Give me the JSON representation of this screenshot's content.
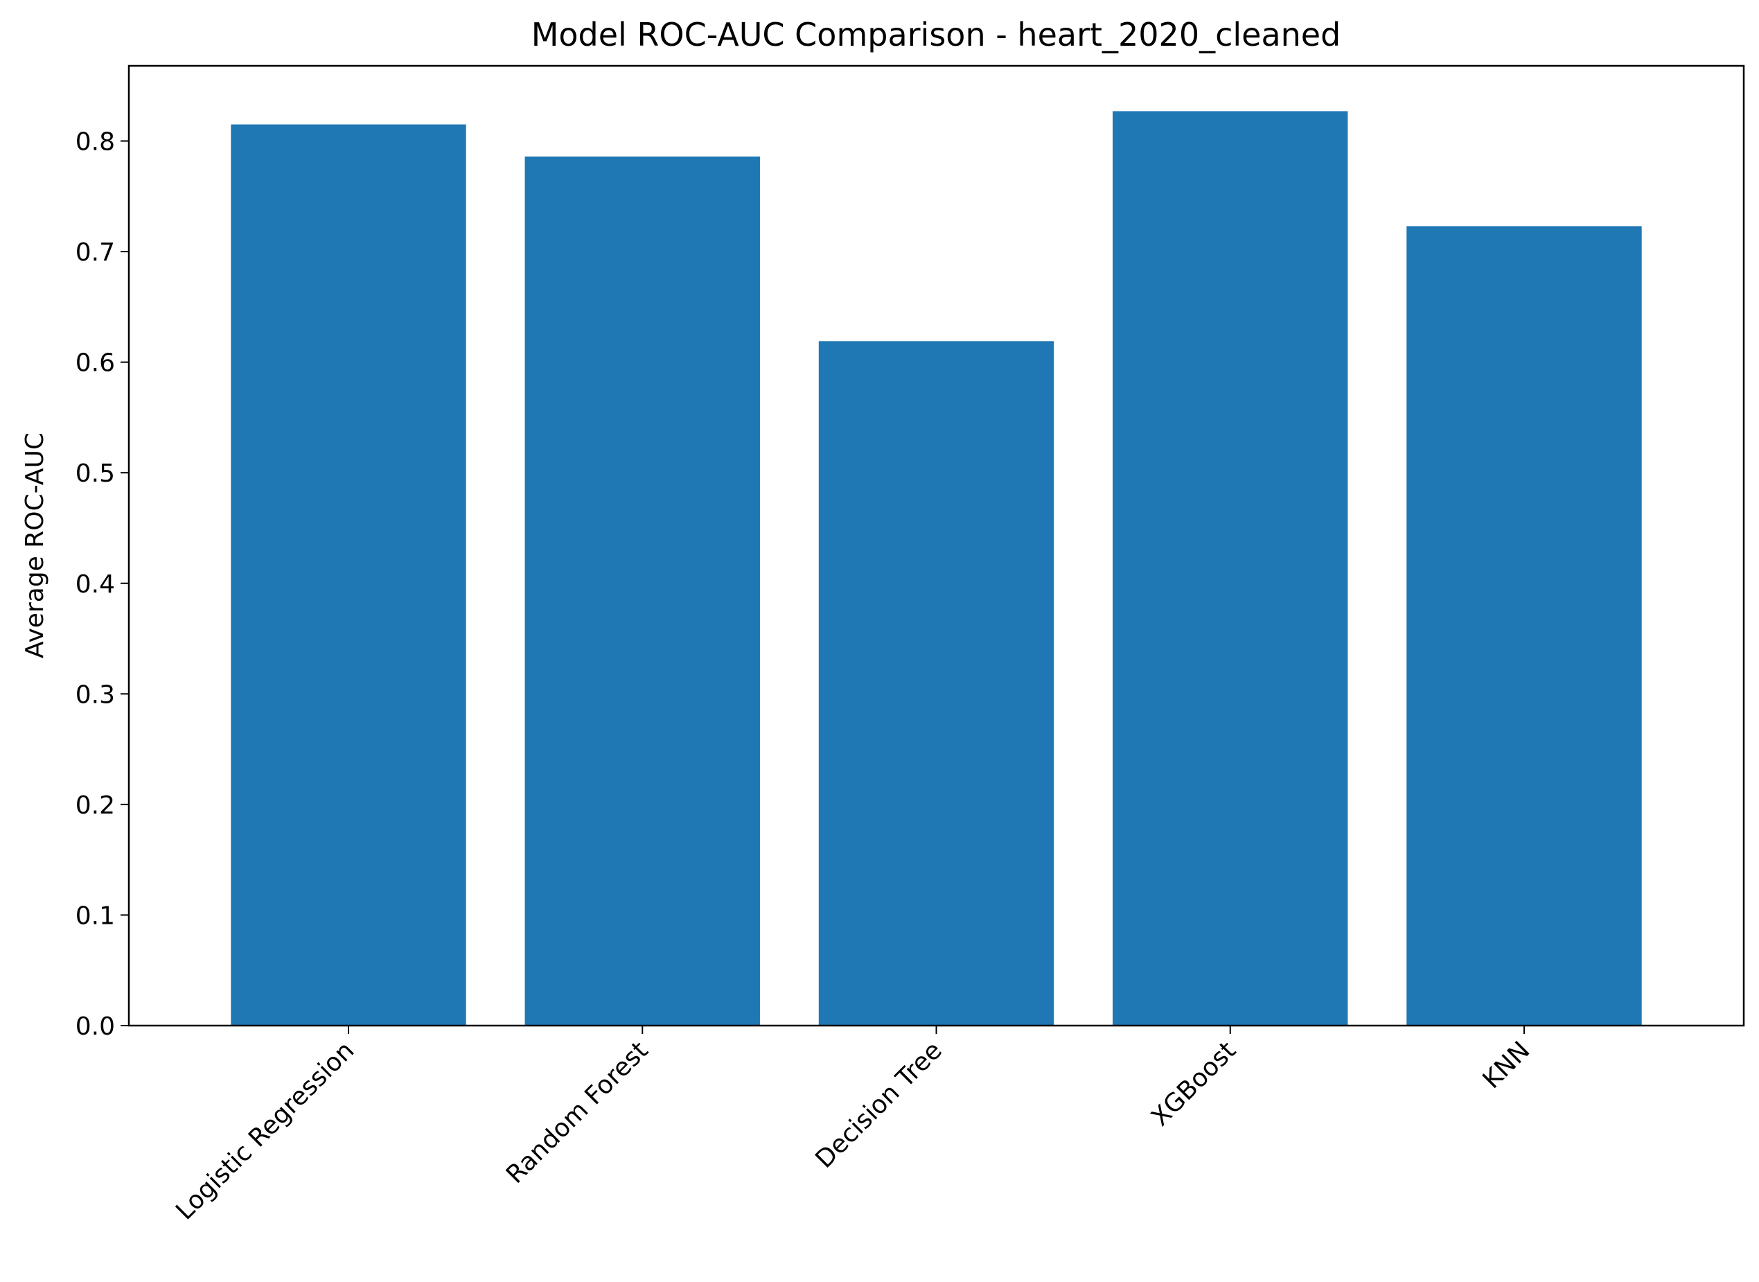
{
  "chart_data": {
    "type": "bar",
    "title": "Model ROC-AUC Comparison - heart_2020_cleaned",
    "xlabel": "",
    "ylabel": "Average ROC-AUC",
    "categories": [
      "Logistic Regression",
      "Random Forest",
      "Decision Tree",
      "XGBoost",
      "KNN"
    ],
    "values": [
      0.815,
      0.786,
      0.619,
      0.827,
      0.723
    ],
    "ylim": [
      0,
      0.868
    ],
    "yticks": [
      "0.0",
      "0.1",
      "0.2",
      "0.3",
      "0.4",
      "0.5",
      "0.6",
      "0.7",
      "0.8"
    ],
    "bar_color": "#1f77b4",
    "grid": false,
    "legend": "none"
  }
}
